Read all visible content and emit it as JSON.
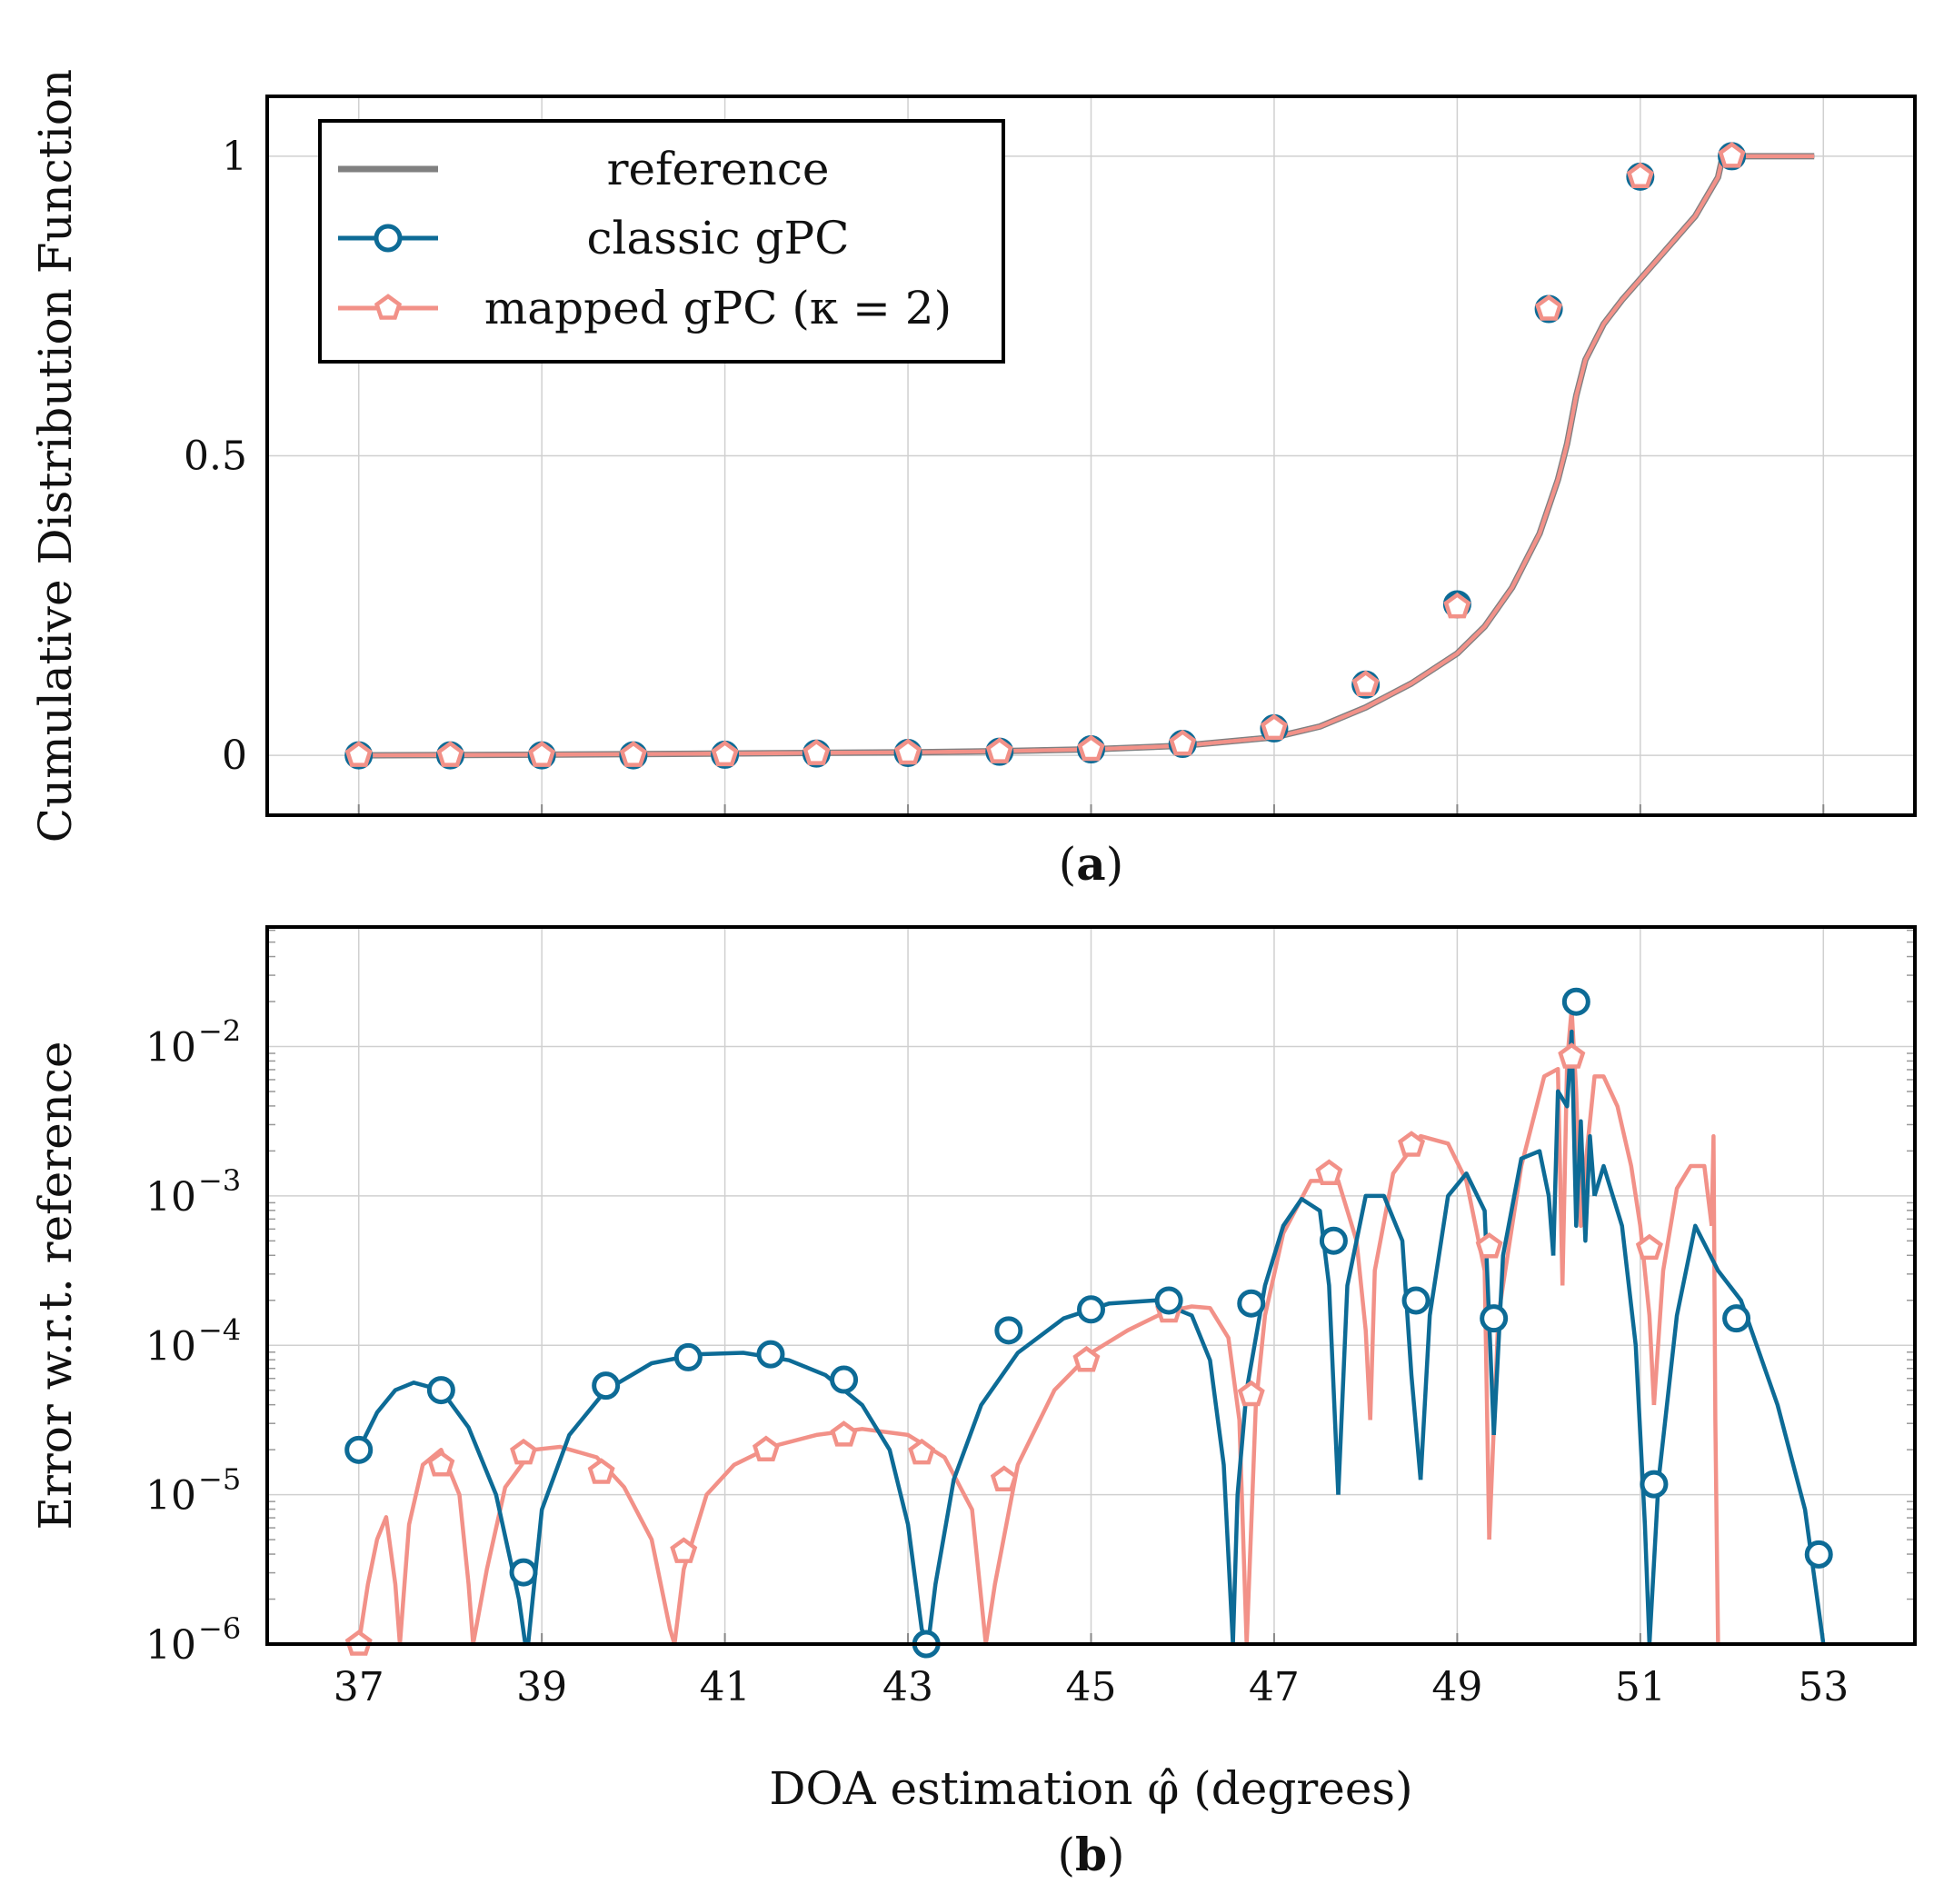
{
  "chart_data": [
    {
      "id": "a",
      "type": "line",
      "caption": "a",
      "xlabel": "",
      "ylabel": "Cumulative Distribution Function",
      "xlim": [
        36,
        54
      ],
      "ylim": [
        -0.1,
        1.1
      ],
      "xticks": [
        37,
        39,
        41,
        43,
        45,
        47,
        49,
        51,
        53
      ],
      "yticks": [
        0,
        0.5,
        1
      ],
      "ytick_labels": [
        "0",
        "0.5",
        "1"
      ],
      "grid": true,
      "legend": {
        "position": "top-left",
        "entries": [
          {
            "label": "reference",
            "color": "#808080",
            "marker": "none"
          },
          {
            "label": "classic gPC",
            "color": "#0d6b96",
            "marker": "circle"
          },
          {
            "label": "mapped gPC (κ = 2)",
            "color": "#f29188",
            "marker": "pentagon"
          }
        ]
      },
      "series": [
        {
          "name": "reference",
          "color": "#808080",
          "marker": "none",
          "x": [
            37,
            38,
            39,
            40,
            41,
            42,
            43,
            44,
            45,
            46,
            47,
            47.5,
            48,
            48.5,
            49,
            49.3,
            49.6,
            49.9,
            50.1,
            50.2,
            50.3,
            50.4,
            50.6,
            50.8,
            51.2,
            51.6,
            51.85,
            51.9,
            52.2,
            52.9
          ],
          "y": [
            0,
            0.0005,
            0.001,
            0.002,
            0.003,
            0.004,
            0.005,
            0.007,
            0.01,
            0.016,
            0.03,
            0.048,
            0.08,
            0.12,
            0.17,
            0.215,
            0.28,
            0.37,
            0.46,
            0.52,
            0.6,
            0.66,
            0.72,
            0.76,
            0.83,
            0.9,
            0.965,
            1.0,
            1.0,
            1.0
          ]
        },
        {
          "name": "classic gPC",
          "color": "#0d6b96",
          "marker": "circle",
          "x": [
            37,
            38,
            39,
            40,
            41,
            42,
            43,
            44,
            45,
            46,
            47,
            47.5,
            48,
            48.5,
            49,
            49.3,
            49.6,
            49.9,
            50.1,
            50.2,
            50.3,
            50.4,
            50.6,
            50.8,
            51.2,
            51.6,
            51.85,
            51.9,
            52.2,
            52.9
          ],
          "y": [
            0,
            0.0005,
            0.001,
            0.002,
            0.003,
            0.004,
            0.005,
            0.007,
            0.01,
            0.016,
            0.03,
            0.048,
            0.08,
            0.12,
            0.17,
            0.215,
            0.28,
            0.37,
            0.46,
            0.52,
            0.6,
            0.66,
            0.72,
            0.76,
            0.83,
            0.9,
            0.965,
            1.0,
            1.0,
            1.0
          ],
          "marker_x": [
            37,
            38,
            39,
            40,
            41,
            42,
            43,
            44,
            45,
            46,
            47,
            48,
            49,
            50,
            51,
            52
          ],
          "marker_y": [
            0,
            0,
            0,
            0,
            0.001,
            0.003,
            0.004,
            0.006,
            0.01,
            0.019,
            0.045,
            0.118,
            0.252,
            0.745,
            0.966,
            1.0
          ]
        },
        {
          "name": "mapped gPC (κ = 2)",
          "color": "#f29188",
          "marker": "pentagon",
          "x": [
            37,
            38,
            39,
            40,
            41,
            42,
            43,
            44,
            45,
            46,
            47,
            47.5,
            48,
            48.5,
            49,
            49.3,
            49.6,
            49.9,
            50.1,
            50.2,
            50.3,
            50.4,
            50.6,
            50.8,
            51.2,
            51.6,
            51.85,
            51.9,
            52.2,
            52.9
          ],
          "y": [
            0,
            0.0005,
            0.001,
            0.002,
            0.003,
            0.004,
            0.005,
            0.007,
            0.01,
            0.016,
            0.03,
            0.048,
            0.08,
            0.12,
            0.17,
            0.215,
            0.28,
            0.37,
            0.46,
            0.52,
            0.6,
            0.66,
            0.72,
            0.76,
            0.83,
            0.9,
            0.965,
            1.0,
            1.0,
            1.0
          ],
          "marker_x": [
            37,
            38,
            39,
            40,
            41,
            42,
            43,
            44,
            45,
            46,
            47,
            48,
            49,
            50,
            51,
            52
          ],
          "marker_y": [
            0,
            0,
            0,
            0,
            0.001,
            0.003,
            0.004,
            0.006,
            0.01,
            0.019,
            0.045,
            0.118,
            0.248,
            0.745,
            0.966,
            1.0
          ]
        }
      ]
    },
    {
      "id": "b",
      "type": "line",
      "caption": "b",
      "xlabel": "DOA estimation φ̂ (degrees)",
      "ylabel": "Error w.r.t. reference",
      "yscale": "log",
      "xlim": [
        36,
        54
      ],
      "ylim_exp": [
        -6,
        -1.2
      ],
      "xticks": [
        37,
        39,
        41,
        43,
        45,
        47,
        49,
        51,
        53
      ],
      "xtick_labels": [
        "37",
        "39",
        "41",
        "43",
        "45",
        "47",
        "49",
        "51",
        "53"
      ],
      "yticks_exp": [
        -6,
        -5,
        -4,
        -3,
        -2
      ],
      "ytick_labels": [
        "10",
        "10",
        "10",
        "10",
        "10"
      ],
      "ytick_exponents": [
        "−6",
        "−5",
        "−4",
        "−3",
        "−2"
      ],
      "grid": true,
      "series": [
        {
          "name": "classic gPC",
          "color": "#0d6b96",
          "marker": "circle",
          "segments": [
            {
              "x": [
                37.0,
                37.2,
                37.4,
                37.6,
                37.9,
                38.2,
                38.5,
                38.75,
                38.82,
                38.85
              ],
              "logy": [
                -4.7,
                -4.45,
                -4.3,
                -4.25,
                -4.3,
                -4.55,
                -5.0,
                -5.7,
                -6.2,
                -6.6
              ]
            },
            {
              "x": [
                38.85,
                38.9,
                39.0,
                39.3,
                39.7,
                40.2,
                40.7,
                41.2,
                41.7,
                42.1,
                42.5,
                42.8,
                43.0,
                43.15,
                43.22
              ],
              "logy": [
                -6.6,
                -5.7,
                -5.1,
                -4.6,
                -4.3,
                -4.12,
                -4.06,
                -4.05,
                -4.1,
                -4.2,
                -4.4,
                -4.7,
                -5.2,
                -5.9,
                -6.6
              ]
            },
            {
              "x": [
                43.22,
                43.3,
                43.5,
                43.8,
                44.2,
                44.7,
                45.2,
                45.7,
                46.1,
                46.3,
                46.45,
                46.55
              ],
              "logy": [
                -6.6,
                -5.6,
                -4.9,
                -4.4,
                -4.05,
                -3.82,
                -3.72,
                -3.7,
                -3.8,
                -4.1,
                -4.8,
                -6.6
              ]
            },
            {
              "x": [
                46.55,
                46.6,
                46.7,
                46.9,
                47.1,
                47.3,
                47.5,
                47.6,
                47.7
              ],
              "logy": [
                -6.6,
                -5.0,
                -4.3,
                -3.6,
                -3.2,
                -3.02,
                -3.1,
                -3.6,
                -5.0
              ]
            },
            {
              "x": [
                47.7,
                47.8,
                48.0,
                48.2,
                48.4,
                48.5,
                48.6
              ],
              "logy": [
                -5.0,
                -3.6,
                -3.0,
                -3.0,
                -3.3,
                -4.2,
                -4.9
              ]
            },
            {
              "x": [
                48.6,
                48.7,
                48.9,
                49.1,
                49.3,
                49.4
              ],
              "logy": [
                -4.9,
                -3.8,
                -3.0,
                -2.85,
                -3.1,
                -4.6
              ]
            },
            {
              "x": [
                49.4,
                49.5,
                49.7,
                49.9,
                50.0,
                50.05
              ],
              "logy": [
                -4.6,
                -3.4,
                -2.75,
                -2.7,
                -3.0,
                -3.4
              ]
            },
            {
              "x": [
                50.05,
                50.1,
                50.2,
                50.25,
                50.3,
                50.35,
                50.4,
                50.45,
                50.5
              ],
              "logy": [
                -3.4,
                -2.3,
                -2.4,
                -1.9,
                -3.2,
                -2.5,
                -3.3,
                -2.6,
                -3.0
              ]
            },
            {
              "x": [
                50.5,
                50.6,
                50.8,
                50.95,
                51.05,
                51.1
              ],
              "logy": [
                -3.0,
                -2.8,
                -3.2,
                -4.0,
                -5.2,
                -6.6
              ]
            },
            {
              "x": [
                51.1,
                51.2,
                51.4,
                51.6,
                51.85,
                52.1,
                52.5,
                52.8,
                53.0
              ],
              "logy": [
                -6.6,
                -4.9,
                -3.8,
                -3.2,
                -3.5,
                -3.7,
                -4.4,
                -5.1,
                -6.6
              ]
            }
          ],
          "marker_x": [
            37,
            37.9,
            38.8,
            39.7,
            40.6,
            41.5,
            42.3,
            43.2,
            44.1,
            45.0,
            45.85,
            46.75,
            47.65,
            48.55,
            49.4,
            50.3,
            51.15,
            52.05,
            52.95
          ],
          "marker_logy": [
            -4.7,
            -4.3,
            -5.52,
            -4.27,
            -4.08,
            -4.06,
            -4.23,
            -6.0,
            -3.9,
            -3.76,
            -3.7,
            -3.72,
            -3.3,
            -3.7,
            -3.82,
            -1.7,
            -4.93,
            -3.82,
            -5.4
          ]
        },
        {
          "name": "mapped gPC (κ = 2)",
          "color": "#f29188",
          "marker": "pentagon",
          "segments": [
            {
              "x": [
                37.0,
                37.1,
                37.2,
                37.3,
                37.4,
                37.45
              ],
              "logy": [
                -6.0,
                -5.6,
                -5.3,
                -5.15,
                -5.6,
                -6.6
              ]
            },
            {
              "x": [
                37.45,
                37.55,
                37.7,
                37.9,
                38.1,
                38.2,
                38.25
              ],
              "logy": [
                -6.6,
                -5.2,
                -4.8,
                -4.7,
                -5.0,
                -5.6,
                -6.6
              ]
            },
            {
              "x": [
                38.25,
                38.4,
                38.6,
                38.9,
                39.2,
                39.6,
                39.9,
                40.2,
                40.4,
                40.45
              ],
              "logy": [
                -6.6,
                -5.5,
                -4.95,
                -4.7,
                -4.68,
                -4.75,
                -4.95,
                -5.3,
                -5.9,
                -6.6
              ]
            },
            {
              "x": [
                40.45,
                40.55,
                40.8,
                41.1,
                41.5,
                42.0,
                42.5,
                43.0,
                43.4,
                43.7,
                43.85
              ],
              "logy": [
                -6.6,
                -5.5,
                -5.0,
                -4.8,
                -4.68,
                -4.6,
                -4.56,
                -4.6,
                -4.75,
                -5.1,
                -6.6
              ]
            },
            {
              "x": [
                43.85,
                43.95,
                44.2,
                44.6,
                45.0,
                45.4,
                45.8,
                46.1,
                46.3,
                46.5,
                46.62,
                46.7
              ],
              "logy": [
                -6.6,
                -5.6,
                -4.8,
                -4.3,
                -4.05,
                -3.9,
                -3.78,
                -3.74,
                -3.75,
                -3.95,
                -4.5,
                -6.6
              ]
            },
            {
              "x": [
                46.7,
                46.75,
                46.8,
                46.9,
                47.1,
                47.4,
                47.7,
                47.9,
                48.0,
                48.05
              ],
              "logy": [
                -6.6,
                -5.2,
                -4.4,
                -3.8,
                -3.25,
                -2.9,
                -2.9,
                -3.3,
                -3.9,
                -4.5
              ]
            },
            {
              "x": [
                48.05,
                48.1,
                48.3,
                48.6,
                48.9,
                49.1,
                49.3,
                49.35
              ],
              "logy": [
                -4.5,
                -3.5,
                -2.85,
                -2.6,
                -2.65,
                -2.9,
                -3.5,
                -5.3
              ]
            },
            {
              "x": [
                49.35,
                49.45,
                49.7,
                49.95,
                50.1,
                50.15
              ],
              "logy": [
                -5.3,
                -3.8,
                -2.8,
                -2.2,
                -2.15,
                -3.6
              ]
            },
            {
              "x": [
                50.15,
                50.2,
                50.25,
                50.3,
                50.35,
                50.4
              ],
              "logy": [
                -3.6,
                -2.1,
                -1.75,
                -2.3,
                -3.2,
                -2.8
              ]
            },
            {
              "x": [
                50.4,
                50.5,
                50.6,
                50.75,
                50.9,
                51.0,
                51.1,
                51.15
              ],
              "logy": [
                -2.8,
                -2.2,
                -2.2,
                -2.4,
                -2.8,
                -3.2,
                -3.8,
                -4.4
              ]
            },
            {
              "x": [
                51.15,
                51.25,
                51.4,
                51.55,
                51.7,
                51.78
              ],
              "logy": [
                -4.4,
                -3.5,
                -2.95,
                -2.8,
                -2.8,
                -3.2
              ]
            },
            {
              "x": [
                51.78,
                51.8,
                51.82,
                51.84,
                51.85
              ],
              "logy": [
                -3.2,
                -2.6,
                -4.5,
                -5.5,
                -6.6
              ]
            }
          ],
          "marker_x": [
            37,
            37.9,
            38.8,
            39.65,
            40.55,
            41.45,
            42.3,
            43.15,
            44.05,
            44.95,
            45.85,
            46.75,
            47.6,
            48.5,
            49.35,
            50.25,
            51.1
          ],
          "marker_logy": [
            -6.0,
            -4.8,
            -4.72,
            -4.85,
            -5.38,
            -4.7,
            -4.6,
            -4.72,
            -4.9,
            -4.1,
            -3.77,
            -4.33,
            -2.85,
            -2.66,
            -3.34,
            -2.07,
            -3.35
          ]
        }
      ]
    }
  ]
}
